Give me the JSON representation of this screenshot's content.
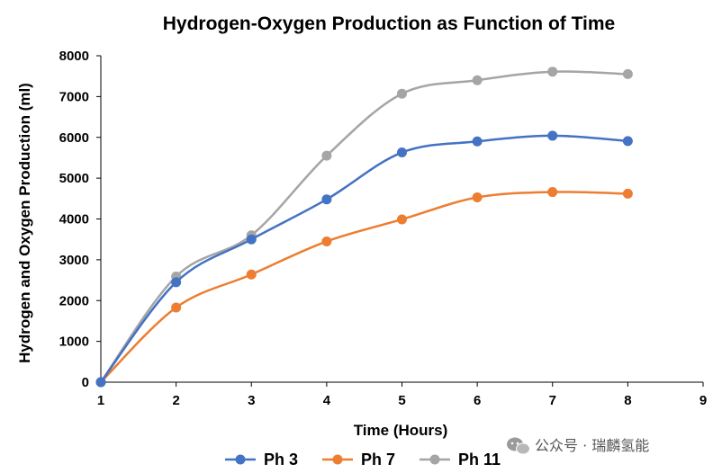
{
  "chart_data": {
    "type": "line",
    "title": "Hydrogen-Oxygen Production as Function of Time",
    "xlabel": "Time (Hours)",
    "ylabel": "Hydrogen and Oxygen Production (ml)",
    "xlim": [
      1,
      9
    ],
    "ylim": [
      0,
      8000
    ],
    "x_ticks": [
      1,
      2,
      3,
      4,
      5,
      6,
      7,
      8,
      9
    ],
    "y_ticks": [
      0,
      1000,
      2000,
      3000,
      4000,
      5000,
      6000,
      7000,
      8000
    ],
    "grid": false,
    "legend_position": "bottom",
    "smooth": true,
    "x": [
      1,
      2,
      3,
      4,
      5,
      6,
      7,
      8
    ],
    "series": [
      {
        "name": "Ph 3",
        "color": "#4472C4",
        "values": [
          0,
          2450,
          3500,
          4480,
          5630,
          5900,
          6040,
          5910
        ]
      },
      {
        "name": "Ph 7",
        "color": "#ED7D31",
        "values": [
          0,
          1830,
          2640,
          3450,
          3990,
          4530,
          4660,
          4620
        ]
      },
      {
        "name": "Ph 11",
        "color": "#A5A5A5",
        "values": [
          0,
          2590,
          3600,
          5550,
          7070,
          7400,
          7610,
          7550
        ]
      }
    ]
  },
  "watermark": {
    "text": "公众号 · 瑞麟氢能",
    "icon": "wechat-icon"
  }
}
